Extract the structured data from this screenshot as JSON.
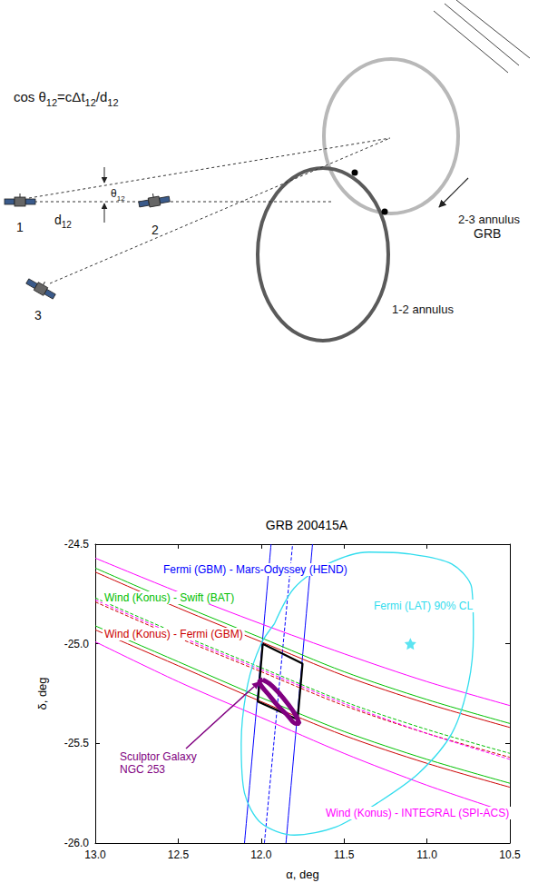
{
  "diagram": {
    "formula": [
      {
        "text": "cos θ"
      },
      {
        "text": "12",
        "sub": true
      },
      {
        "text": "=cΔt"
      },
      {
        "text": "12",
        "sub": true
      },
      {
        "text": "/d"
      },
      {
        "text": "12",
        "sub": true
      }
    ],
    "angle_label": [
      {
        "text": "θ"
      },
      {
        "text": "12",
        "sub": true
      }
    ],
    "baseline_label": [
      {
        "text": "d"
      },
      {
        "text": "12",
        "sub": true
      }
    ],
    "satellites": [
      "1",
      "2",
      "3"
    ],
    "source": "GRB",
    "annuli": [
      {
        "label": "2-3 annulus",
        "color": "#b8b8b8"
      },
      {
        "label": "1-2 annulus",
        "color": "#5a5a5a"
      }
    ]
  },
  "chart_data": {
    "type": "line",
    "title": "GRB 200415A",
    "xlabel": "α, deg",
    "ylabel": "δ, deg",
    "xlim": [
      13.0,
      10.5
    ],
    "ylim": [
      -26.0,
      -24.5
    ],
    "xticks": [
      {
        "value": 13,
        "label": "13.0"
      },
      12.5,
      {
        "value": 12,
        "label": "12.0"
      },
      11.5,
      {
        "value": 11,
        "label": "11.0"
      },
      10.5
    ],
    "yticks": [
      {
        "value": -26,
        "label": "-26.0"
      },
      -25.5,
      {
        "value": -25,
        "label": "-25.0"
      },
      -24.5
    ],
    "grid": false,
    "series": [
      {
        "name": "Fermi (GBM) - Mars-Odyssey (HEND)",
        "type": "line",
        "color": "#0000ff",
        "lines": [
          {
            "line_style": "solid",
            "points": [
              [
                12.1,
                -26.0
              ],
              [
                11.94,
                -24.5
              ]
            ]
          },
          {
            "line_style": "dashed",
            "points": [
              [
                11.98,
                -26.0
              ],
              [
                11.81,
                -24.5
              ]
            ]
          },
          {
            "line_style": "solid",
            "points": [
              [
                11.85,
                -26.0
              ],
              [
                11.69,
                -24.5
              ]
            ]
          }
        ]
      },
      {
        "name": "Wind (Konus) - Swift (BAT)",
        "type": "line",
        "color": "#00c000",
        "lines": [
          {
            "line_style": "solid",
            "points": [
              [
                13.0,
                -24.62
              ],
              [
                12.5,
                -24.8
              ],
              [
                12.0,
                -24.97
              ],
              [
                11.5,
                -25.14
              ],
              [
                11.0,
                -25.28
              ],
              [
                10.5,
                -25.4
              ]
            ]
          },
          {
            "line_style": "dashed",
            "points": [
              [
                13.0,
                -24.77
              ],
              [
                12.5,
                -24.95
              ],
              [
                12.0,
                -25.12
              ],
              [
                11.5,
                -25.29
              ],
              [
                11.0,
                -25.43
              ],
              [
                10.5,
                -25.55
              ]
            ]
          },
          {
            "line_style": "solid",
            "points": [
              [
                13.0,
                -24.91
              ],
              [
                12.5,
                -25.09
              ],
              [
                12.0,
                -25.27
              ],
              [
                11.5,
                -25.44
              ],
              [
                11.0,
                -25.58
              ],
              [
                10.5,
                -25.7
              ]
            ]
          }
        ]
      },
      {
        "name": "Wind (Konus) - Fermi (GBM)",
        "type": "line",
        "color": "#cc0000",
        "lines": [
          {
            "line_style": "solid",
            "points": [
              [
                13.0,
                -24.64
              ],
              [
                12.5,
                -24.82
              ],
              [
                12.0,
                -24.99
              ],
              [
                11.5,
                -25.16
              ],
              [
                11.0,
                -25.3
              ],
              [
                10.5,
                -25.42
              ]
            ]
          },
          {
            "line_style": "dashed",
            "points": [
              [
                13.0,
                -24.79
              ],
              [
                12.5,
                -24.97
              ],
              [
                12.0,
                -25.14
              ],
              [
                11.5,
                -25.31
              ],
              [
                11.0,
                -25.45
              ],
              [
                10.5,
                -25.57
              ]
            ]
          },
          {
            "line_style": "solid",
            "points": [
              [
                13.0,
                -24.93
              ],
              [
                12.5,
                -25.11
              ],
              [
                12.0,
                -25.29
              ],
              [
                11.5,
                -25.46
              ],
              [
                11.0,
                -25.6
              ],
              [
                10.5,
                -25.72
              ]
            ]
          }
        ]
      },
      {
        "name": "Wind (Konus) - INTEGRAL (SPI-ACS)",
        "type": "line",
        "color": "#ff00ff",
        "lines": [
          {
            "line_style": "solid",
            "points": [
              [
                13.0,
                -24.57
              ],
              [
                12.5,
                -24.74
              ],
              [
                12.0,
                -24.9
              ],
              [
                11.5,
                -25.05
              ],
              [
                11.0,
                -25.19
              ],
              [
                10.5,
                -25.31
              ]
            ]
          },
          {
            "line_style": "dashed",
            "points": [
              [
                13.0,
                -24.78
              ],
              [
                12.5,
                -24.96
              ],
              [
                12.0,
                -25.13
              ],
              [
                11.5,
                -25.3
              ],
              [
                11.0,
                -25.45
              ],
              [
                10.5,
                -25.58
              ]
            ]
          },
          {
            "line_style": "solid",
            "points": [
              [
                13.0,
                -24.99
              ],
              [
                12.5,
                -25.19
              ],
              [
                12.0,
                -25.37
              ],
              [
                11.5,
                -25.55
              ],
              [
                11.0,
                -25.71
              ],
              [
                10.5,
                -25.85
              ]
            ]
          }
        ]
      },
      {
        "name": "Fermi (LAT) 90% CL",
        "type": "contour",
        "color": "#33ddee",
        "marker": "star",
        "marker_point": [
          11.1,
          -25.0
        ],
        "lines": [
          {
            "line_style": "solid",
            "points": [
              [
                11.92,
                -24.9
              ],
              [
                11.8,
                -24.72
              ],
              [
                11.6,
                -24.6
              ],
              [
                11.35,
                -24.54
              ],
              [
                11.1,
                -24.55
              ],
              [
                10.85,
                -24.6
              ],
              [
                10.73,
                -24.72
              ],
              [
                10.72,
                -24.95
              ],
              [
                10.75,
                -25.2
              ],
              [
                10.85,
                -25.45
              ],
              [
                11.05,
                -25.65
              ],
              [
                11.3,
                -25.8
              ],
              [
                11.55,
                -25.92
              ],
              [
                11.8,
                -25.96
              ],
              [
                12.0,
                -25.9
              ],
              [
                12.1,
                -25.75
              ],
              [
                12.12,
                -25.5
              ],
              [
                12.08,
                -25.2
              ],
              [
                12.0,
                -25.0
              ],
              [
                11.92,
                -24.9
              ]
            ]
          }
        ]
      },
      {
        "type": "region",
        "color": "#000000",
        "lines": [
          {
            "line_style": "solid",
            "points": [
              [
                11.99,
                -25.0
              ],
              [
                11.75,
                -25.1
              ],
              [
                11.78,
                -25.38
              ],
              [
                12.02,
                -25.29
              ],
              [
                11.99,
                -25.0
              ]
            ]
          }
        ]
      },
      {
        "name_lines": [
          "Sculptor Galaxy",
          "NGC 253"
        ],
        "type": "ellipse",
        "color": "#800080",
        "lines": [
          {
            "line_style": "solid",
            "points": [
              [
                11.99,
                -25.18
              ],
              [
                11.95,
                -25.2
              ],
              [
                11.9,
                -25.24
              ],
              [
                11.84,
                -25.3
              ],
              [
                11.79,
                -25.36
              ],
              [
                11.77,
                -25.4
              ],
              [
                11.79,
                -25.4
              ],
              [
                11.84,
                -25.36
              ],
              [
                11.9,
                -25.31
              ],
              [
                11.96,
                -25.25
              ],
              [
                12.0,
                -25.21
              ],
              [
                12.01,
                -25.19
              ],
              [
                11.99,
                -25.18
              ]
            ]
          }
        ]
      }
    ]
  }
}
